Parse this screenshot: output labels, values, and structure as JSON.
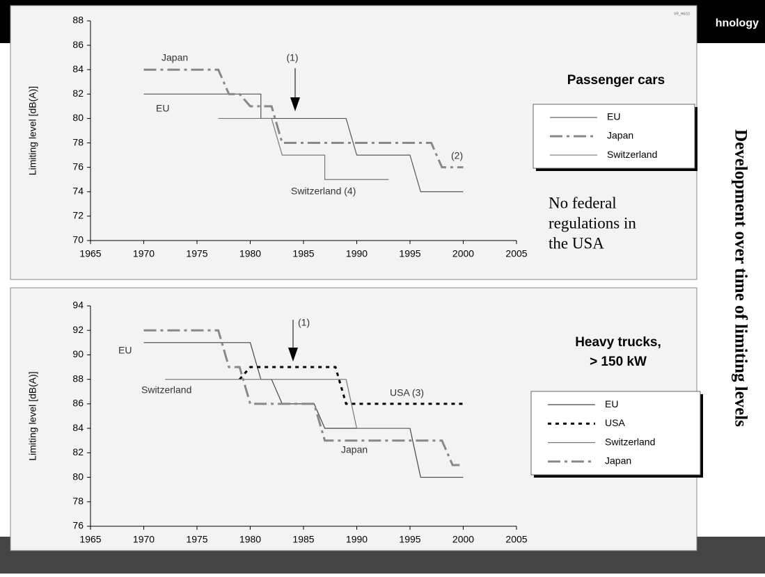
{
  "slide": {
    "header": "hnology",
    "code": "VR_H6/10",
    "vertical_title": "Development over time of limiting levels"
  },
  "chart_data": [
    {
      "type": "line",
      "title": [
        "Passenger cars"
      ],
      "ylabel": "Limiting level [dB(A)]",
      "xlim": [
        1965,
        2005
      ],
      "xticks": [
        1965,
        1970,
        1975,
        1980,
        1985,
        1990,
        1995,
        2000,
        2005
      ],
      "ylim": [
        70,
        88
      ],
      "yticks": [
        70,
        72,
        74,
        76,
        78,
        80,
        82,
        84,
        86,
        88
      ],
      "note": [
        "No federal",
        "regulations in",
        "the USA"
      ],
      "annotations": [
        "Japan",
        "EU",
        "(1)",
        "(2)",
        "Switzerland (4)"
      ],
      "series": [
        {
          "name": "EU",
          "color": "#555555",
          "dash": "solid",
          "x": [
            1970,
            1981,
            1981,
            1989,
            1990,
            1995,
            1996,
            2000
          ],
          "values": [
            82,
            82,
            80,
            80,
            77,
            77,
            74,
            74
          ]
        },
        {
          "name": "Japan",
          "color": "#888888",
          "dash": "dashdot",
          "x": [
            1970,
            1977,
            1978,
            1979,
            1980,
            1982,
            1983,
            1997,
            1998,
            2000
          ],
          "values": [
            84,
            84,
            82,
            82,
            81,
            81,
            78,
            78,
            76,
            76
          ]
        },
        {
          "name": "Switzerland",
          "color": "#777777",
          "dash": "solid",
          "x": [
            1977,
            1982,
            1983,
            1987,
            1987,
            1993
          ],
          "values": [
            80,
            80,
            77,
            77,
            75,
            75
          ]
        }
      ]
    },
    {
      "type": "line",
      "title": [
        "Heavy trucks,",
        "> 150 kW"
      ],
      "ylabel": "Limiting level [dB(A)]",
      "xlim": [
        1965,
        2005
      ],
      "xticks": [
        1965,
        1970,
        1975,
        1980,
        1985,
        1990,
        1995,
        2000,
        2005
      ],
      "ylim": [
        76,
        94
      ],
      "yticks": [
        76,
        78,
        80,
        82,
        84,
        86,
        88,
        90,
        92,
        94
      ],
      "annotations": [
        "EU",
        "Switzerland",
        "(1)",
        "USA (3)",
        "Japan"
      ],
      "series": [
        {
          "name": "EU",
          "color": "#444444",
          "dash": "solid",
          "x": [
            1970,
            1980,
            1981,
            1982,
            1983,
            1986,
            1987,
            1995,
            1996,
            2000
          ],
          "values": [
            91,
            91,
            88,
            88,
            86,
            86,
            84,
            84,
            80,
            80
          ]
        },
        {
          "name": "USA",
          "color": "#000000",
          "dash": "dotted",
          "x": [
            1979,
            1980,
            1988,
            1989,
            2000
          ],
          "values": [
            88,
            89,
            89,
            86,
            86
          ]
        },
        {
          "name": "Switzerland",
          "color": "#777777",
          "dash": "solid",
          "x": [
            1972,
            1989,
            1990,
            1995
          ],
          "values": [
            88,
            88,
            84,
            84
          ]
        },
        {
          "name": "Japan",
          "color": "#888888",
          "dash": "dashdot",
          "x": [
            1970,
            1977,
            1978,
            1979,
            1980,
            1986,
            1987,
            1998,
            1999,
            2000
          ],
          "values": [
            92,
            92,
            89,
            89,
            86,
            86,
            83,
            83,
            81,
            81
          ]
        }
      ]
    }
  ]
}
